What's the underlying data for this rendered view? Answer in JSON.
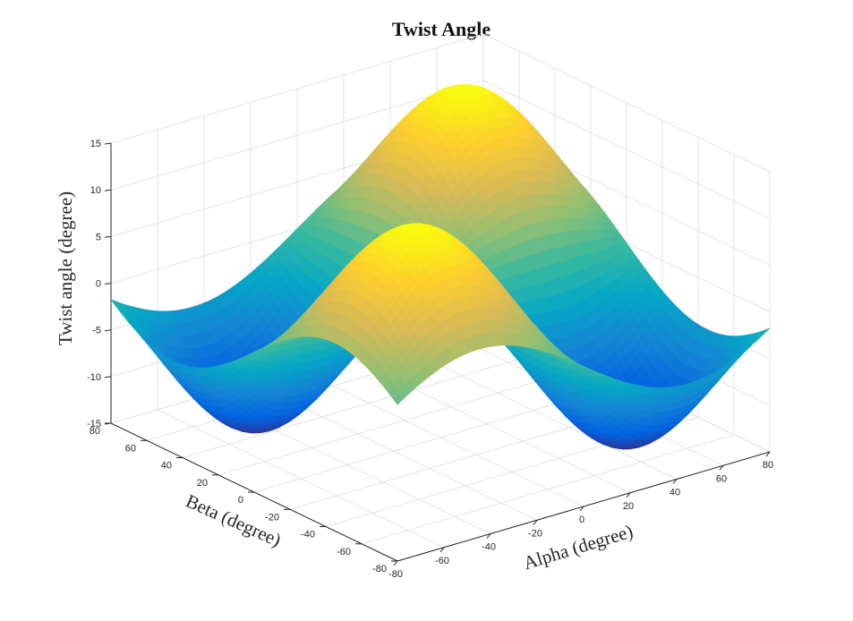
{
  "chart_data": {
    "type": "surface3d",
    "title": "Twist Angle",
    "xlabel": "Alpha (degree)",
    "ylabel": "Beta (degree)",
    "zlabel": "Twist angle (degree)",
    "xlim": [
      -80,
      80
    ],
    "ylim": [
      -80,
      80
    ],
    "zlim": [
      -15,
      15
    ],
    "x_ticks": [
      -80,
      -60,
      -40,
      -20,
      0,
      20,
      40,
      60,
      80
    ],
    "y_ticks": [
      -80,
      -60,
      -40,
      -20,
      0,
      20,
      40,
      60,
      80
    ],
    "z_ticks": [
      -15,
      -10,
      -5,
      0,
      5,
      10,
      15
    ],
    "grid": true,
    "colormap": "parula",
    "colormap_colors": [
      "#352a87",
      "#0363e1",
      "#1485d4",
      "#06a7c6",
      "#38b99e",
      "#92bf73",
      "#d9ba56",
      "#fcce2e",
      "#f9fb0e"
    ],
    "surface": "z = 15*sin(2*alpha)*sin(2*beta) with grid sampled at 2.5 degree steps over [-80,80] x [-80,80]"
  }
}
